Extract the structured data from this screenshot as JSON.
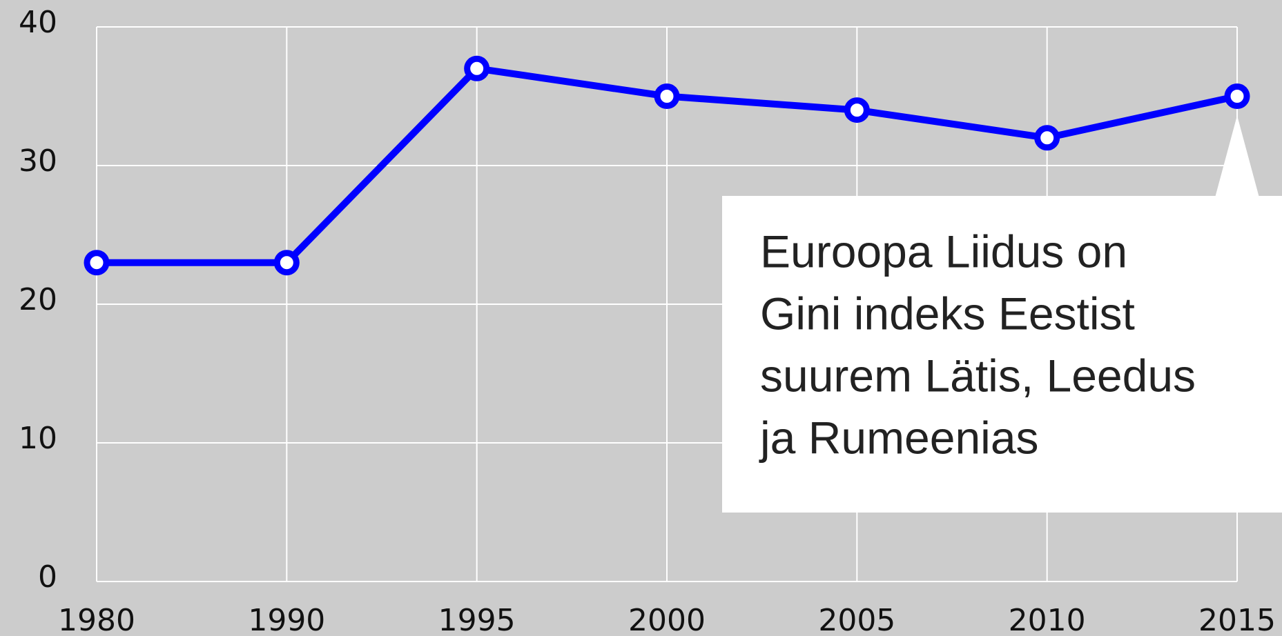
{
  "chart_data": {
    "type": "line",
    "categories": [
      "1980",
      "1990",
      "1995",
      "2000",
      "2005",
      "2010",
      "2015"
    ],
    "series": [
      {
        "color": "#0000ff",
        "values": [
          23,
          23,
          37,
          35,
          34,
          32,
          35
        ]
      }
    ],
    "ylim": [
      0,
      40
    ],
    "yticks": [
      0,
      10,
      20,
      30,
      40
    ],
    "grid": true,
    "annotation": [
      "Euroopa Liidus on",
      "Gini indeks Eestist",
      "suurem Lätis, Leedus",
      "ja Rumeenias"
    ]
  }
}
